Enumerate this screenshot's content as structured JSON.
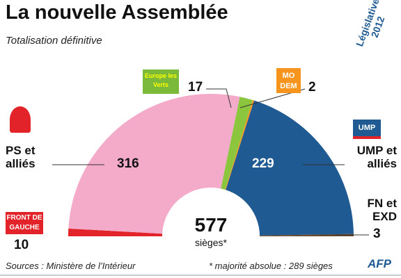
{
  "chart_data": {
    "type": "hemicycle",
    "title": "La nouvelle Assemblée",
    "subtitle": "Totalisation définitive",
    "categories": [
      "",
      "PS et alliés",
      "",
      "",
      "UMP et alliés",
      "FN et EXD"
    ],
    "values": [
      10,
      316,
      17,
      2,
      229,
      3
    ],
    "colors": [
      "#e2232a",
      "#f3abc9",
      "#8cc63f",
      "#f7941d",
      "#1f5a93",
      "#6b4a2e"
    ],
    "total": 577,
    "total_label": "sièges*",
    "source": "Sources : Ministère de l’Intérieur",
    "note": "* majorité absolue : 289 sièges",
    "credit": "AFP",
    "logos": {
      "fdg": "FRONT DE GAUCHE",
      "eelv": "Europe les Verts",
      "modem": "MO DEM",
      "ump": "UMP",
      "event": "Législatives 2012"
    }
  }
}
